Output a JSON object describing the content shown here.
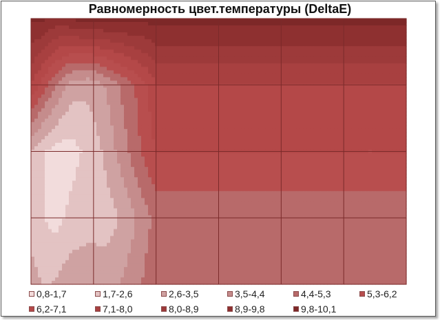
{
  "chart_data": {
    "type": "contour",
    "title": "Равномерность цвет.температуры (DeltaE)",
    "grid": true,
    "legend_position": "bottom",
    "bands": [
      {
        "label": "0,8-1,7",
        "color": "#f2dcdc"
      },
      {
        "label": "1,7-2,6",
        "color": "#e3c3c3"
      },
      {
        "label": "2,6-3,5",
        "color": "#cfa2a2"
      },
      {
        "label": "3,5-4,4",
        "color": "#c58c8c"
      },
      {
        "label": "4,4-5,3",
        "color": "#b86a6a"
      },
      {
        "label": "5,3-6,2",
        "color": "#b84e4e"
      },
      {
        "label": "6,2-7,1",
        "color": "#b44848"
      },
      {
        "label": "7,1-8,0",
        "color": "#a84040"
      },
      {
        "label": "8,0-8,9",
        "color": "#9d3a3a"
      },
      {
        "label": "8,9-9,8",
        "color": "#8e3030"
      },
      {
        "label": "9,8-10,1",
        "color": "#7d2828"
      }
    ],
    "grid_values": [
      [
        10.0,
        10.1,
        9.7,
        9.5,
        9.6,
        9.9,
        10.1,
        10.1,
        10.1,
        10.1,
        10.1,
        10.1,
        10.1,
        10.1,
        10.1,
        10.1,
        10.1,
        10.1,
        10.1,
        10.1,
        10.1,
        10.1,
        10.1,
        10.1,
        10.1,
        10.1,
        10.1,
        10.1,
        10.1,
        10.1,
        10.1,
        10.1,
        10.1,
        10.1,
        10.1,
        10.1,
        10.1,
        10.1,
        10.1,
        10.1,
        10.1,
        10.1,
        10.1,
        10.1,
        10.1,
        10.1
      ],
      [
        7.1,
        6.2,
        5.3,
        4.4,
        3.6,
        3.0,
        2.9,
        2.8,
        3.1,
        3.6,
        4.1,
        4.6,
        5.1,
        5.6,
        6.2,
        7.1,
        7.1,
        7.1,
        7.1,
        7.1,
        7.1,
        7.1,
        7.1,
        7.1,
        7.1,
        7.1,
        7.1,
        7.1,
        7.1,
        7.1,
        7.1,
        7.1,
        7.1,
        7.1,
        7.1,
        7.1,
        7.1,
        7.1,
        7.1,
        7.1,
        7.1,
        7.1,
        7.1,
        7.1,
        7.1,
        7.1
      ],
      [
        2.6,
        2.0,
        1.6,
        1.4,
        1.3,
        1.4,
        1.7,
        2.1,
        2.4,
        2.8,
        3.4,
        4.0,
        4.6,
        5.2,
        5.8,
        6.2,
        6.2,
        6.2,
        6.2,
        6.2,
        6.2,
        6.2,
        6.2,
        6.2,
        6.2,
        6.2,
        6.2,
        6.2,
        6.2,
        6.2,
        6.2,
        6.2,
        6.2,
        6.2,
        6.2,
        6.2,
        6.2,
        6.2,
        6.2,
        6.2,
        6.2,
        6.2,
        6.2,
        6.2,
        6.2,
        6.2
      ],
      [
        2.2,
        1.9,
        1.6,
        1.4,
        1.7,
        2.0,
        2.3,
        2.5,
        2.4,
        2.2,
        2.4,
        2.8,
        3.2,
        3.7,
        4.2,
        4.7,
        4.7,
        4.7,
        4.7,
        4.7,
        4.7,
        4.7,
        4.7,
        4.7,
        4.7,
        4.7,
        4.7,
        4.7,
        4.7,
        4.7,
        4.7,
        4.7,
        4.7,
        4.7,
        4.7,
        4.7,
        4.7,
        4.7,
        4.7,
        4.7,
        4.7,
        4.7,
        4.7,
        4.7,
        4.7,
        4.7
      ],
      [
        3.0,
        2.7,
        2.5,
        2.7,
        3.0,
        3.2,
        3.0,
        2.8,
        2.9,
        3.1,
        3.4,
        3.6,
        3.9,
        4.3,
        4.7,
        5.1,
        5.1,
        5.1,
        5.1,
        5.1,
        5.1,
        5.1,
        5.1,
        5.1,
        5.1,
        5.1,
        5.1,
        5.1,
        5.1,
        5.1,
        5.1,
        5.1,
        5.1,
        5.1,
        5.1,
        5.1,
        5.1,
        5.1,
        5.1,
        5.1,
        5.1,
        5.1,
        5.1,
        5.1,
        5.1,
        5.1
      ]
    ]
  }
}
